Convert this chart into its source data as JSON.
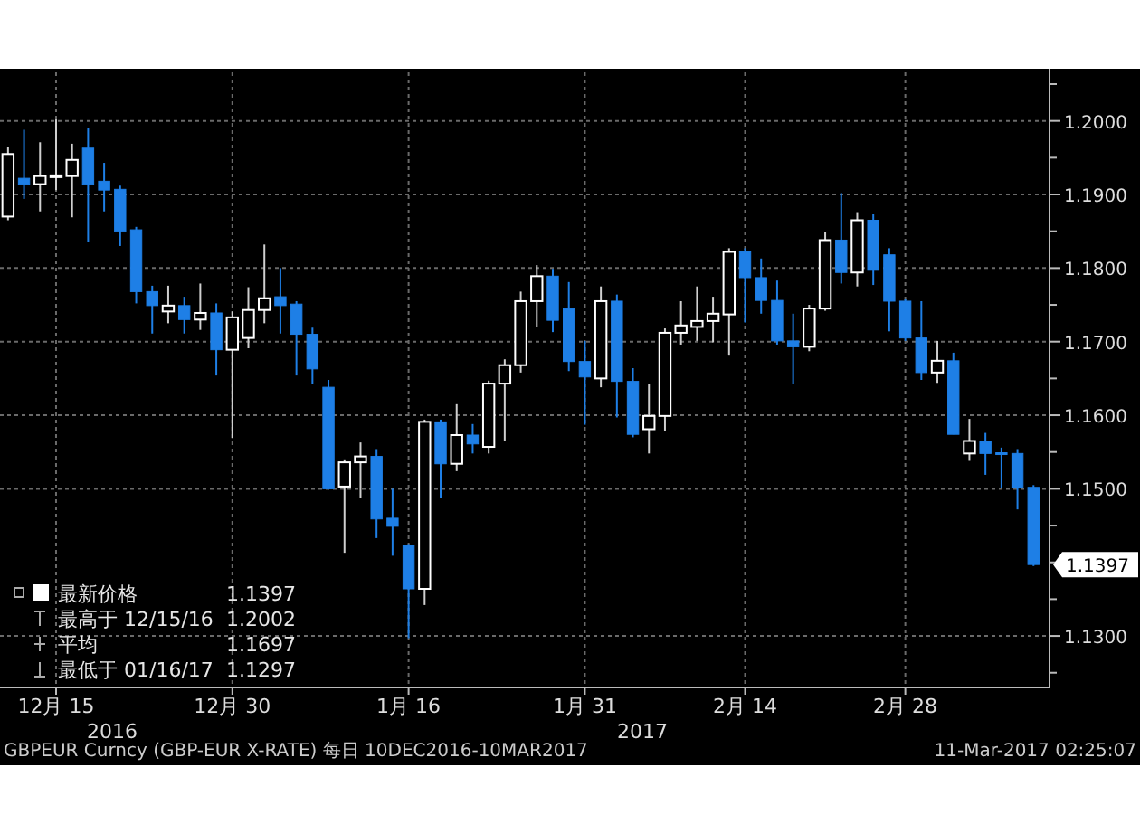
{
  "chart_data": {
    "type": "candlestick",
    "categories": [
      null,
      null,
      null,
      "12月 15",
      null,
      null,
      null,
      null,
      null,
      null,
      null,
      null,
      null,
      null,
      "12月 30",
      null,
      null,
      null,
      null,
      null,
      null,
      null,
      null,
      null,
      null,
      "1月 16",
      null,
      null,
      null,
      null,
      null,
      null,
      null,
      null,
      null,
      null,
      "1月 31",
      null,
      null,
      null,
      null,
      null,
      null,
      null,
      null,
      null,
      "2月 14",
      null,
      null,
      null,
      null,
      null,
      null,
      null,
      null,
      null,
      "2月 28",
      null,
      null,
      null,
      null,
      null,
      null,
      null,
      null
    ],
    "ohlc": [
      [
        1.187,
        1.1965,
        1.1865,
        1.1955
      ],
      [
        1.1922,
        1.1988,
        1.1894,
        1.1914
      ],
      [
        1.1914,
        1.1971,
        1.1877,
        1.1925
      ],
      [
        1.1924,
        1.2002,
        1.1906,
        1.1926
      ],
      [
        1.1925,
        1.1969,
        1.1869,
        1.1947
      ],
      [
        1.1963,
        1.199,
        1.1836,
        1.1914
      ],
      [
        1.1918,
        1.1943,
        1.1877,
        1.1906
      ],
      [
        1.1907,
        1.1912,
        1.183,
        1.185
      ],
      [
        1.1852,
        1.1856,
        1.1752,
        1.1768
      ],
      [
        1.1768,
        1.1776,
        1.1711,
        1.1749
      ],
      [
        1.1741,
        1.1776,
        1.1725,
        1.1749
      ],
      [
        1.1749,
        1.1761,
        1.1711,
        1.173
      ],
      [
        1.173,
        1.1779,
        1.1716,
        1.1739
      ],
      [
        1.1739,
        1.1752,
        1.1654,
        1.1689
      ],
      [
        1.1689,
        1.1741,
        1.1569,
        1.1733
      ],
      [
        1.1705,
        1.1774,
        1.1691,
        1.1743
      ],
      [
        1.1743,
        1.1832,
        1.1725,
        1.1759
      ],
      [
        1.1761,
        1.18,
        1.1711,
        1.1749
      ],
      [
        1.1751,
        1.1755,
        1.1654,
        1.171
      ],
      [
        1.171,
        1.1719,
        1.1642,
        1.1663
      ],
      [
        1.1638,
        1.1648,
        1.1499,
        1.15
      ],
      [
        1.1503,
        1.154,
        1.1413,
        1.1536
      ],
      [
        1.1536,
        1.1563,
        1.1487,
        1.1544
      ],
      [
        1.1544,
        1.1554,
        1.1433,
        1.1459
      ],
      [
        1.146,
        1.15,
        1.1409,
        1.1449
      ],
      [
        1.1423,
        1.1425,
        1.1297,
        1.1364
      ],
      [
        1.1364,
        1.1594,
        1.1342,
        1.1591
      ],
      [
        1.1591,
        1.1594,
        1.1487,
        1.1534
      ],
      [
        1.1534,
        1.1615,
        1.1524,
        1.1573
      ],
      [
        1.1573,
        1.1588,
        1.1548,
        1.1561
      ],
      [
        1.1557,
        1.1647,
        1.1548,
        1.1643
      ],
      [
        1.1643,
        1.1676,
        1.1565,
        1.1668
      ],
      [
        1.1668,
        1.1768,
        1.1658,
        1.1755
      ],
      [
        1.1755,
        1.1804,
        1.172,
        1.1789
      ],
      [
        1.1789,
        1.1799,
        1.1713,
        1.1729
      ],
      [
        1.1745,
        1.1781,
        1.166,
        1.1673
      ],
      [
        1.1673,
        1.1701,
        1.1587,
        1.1652
      ],
      [
        1.165,
        1.1775,
        1.1638,
        1.1755
      ],
      [
        1.1755,
        1.1764,
        1.1597,
        1.1646
      ],
      [
        1.1646,
        1.1664,
        1.157,
        1.1574
      ],
      [
        1.1581,
        1.1642,
        1.1548,
        1.1599
      ],
      [
        1.1599,
        1.1718,
        1.1579,
        1.1712
      ],
      [
        1.1712,
        1.1755,
        1.1696,
        1.1722
      ],
      [
        1.172,
        1.1775,
        1.1701,
        1.1728
      ],
      [
        1.1728,
        1.1761,
        1.1699,
        1.1738
      ],
      [
        1.1737,
        1.1827,
        1.1681,
        1.1822
      ],
      [
        1.1822,
        1.1827,
        1.1726,
        1.1787
      ],
      [
        1.1787,
        1.1813,
        1.1738,
        1.1756
      ],
      [
        1.1756,
        1.1783,
        1.1696,
        1.1701
      ],
      [
        1.1701,
        1.1738,
        1.1642,
        1.1693
      ],
      [
        1.1693,
        1.175,
        1.1687,
        1.1745
      ],
      [
        1.1745,
        1.1849,
        1.1742,
        1.1838
      ],
      [
        1.1838,
        1.1902,
        1.1779,
        1.1794
      ],
      [
        1.1794,
        1.1876,
        1.1775,
        1.1865
      ],
      [
        1.1865,
        1.1873,
        1.1777,
        1.1797
      ],
      [
        1.1818,
        1.1827,
        1.1714,
        1.1755
      ],
      [
        1.1755,
        1.1758,
        1.1701,
        1.1705
      ],
      [
        1.1705,
        1.1755,
        1.1648,
        1.1658
      ],
      [
        1.1658,
        1.1701,
        1.1644,
        1.1674
      ],
      [
        1.1674,
        1.1685,
        1.1574,
        1.1574
      ],
      [
        1.1548,
        1.1595,
        1.1538,
        1.1565
      ],
      [
        1.1565,
        1.1576,
        1.1519,
        1.1548
      ],
      [
        1.1549,
        1.1556,
        1.1501,
        1.1548
      ],
      [
        1.1548,
        1.1554,
        1.1472,
        1.1501
      ],
      [
        1.1502,
        1.1505,
        1.1395,
        1.1397
      ]
    ],
    "colors": [
      "#ffffff",
      "#1e7fe6",
      "#ffffff",
      "#ffffff",
      "#ffffff",
      "#1e7fe6",
      "#1e7fe6",
      "#1e7fe6",
      "#1e7fe6",
      "#1e7fe6",
      "#ffffff",
      "#1e7fe6",
      "#ffffff",
      "#1e7fe6",
      "#ffffff",
      "#ffffff",
      "#ffffff",
      "#1e7fe6",
      "#1e7fe6",
      "#1e7fe6",
      "#1e7fe6",
      "#ffffff",
      "#ffffff",
      "#1e7fe6",
      "#1e7fe6",
      "#1e7fe6",
      "#ffffff",
      "#1e7fe6",
      "#ffffff",
      "#1e7fe6",
      "#ffffff",
      "#ffffff",
      "#ffffff",
      "#ffffff",
      "#1e7fe6",
      "#1e7fe6",
      "#1e7fe6",
      "#ffffff",
      "#1e7fe6",
      "#1e7fe6",
      "#ffffff",
      "#ffffff",
      "#ffffff",
      "#ffffff",
      "#ffffff",
      "#ffffff",
      "#1e7fe6",
      "#1e7fe6",
      "#1e7fe6",
      "#1e7fe6",
      "#ffffff",
      "#ffffff",
      "#1e7fe6",
      "#ffffff",
      "#1e7fe6",
      "#1e7fe6",
      "#1e7fe6",
      "#1e7fe6",
      "#ffffff",
      "#1e7fe6",
      "#ffffff",
      "#1e7fe6",
      "#1e7fe6",
      "#1e7fe6",
      "#1e7fe6"
    ],
    "ylim": [
      1.123,
      1.2066
    ],
    "yticks": [
      {
        "value": 1.125,
        "label": null
      },
      {
        "value": 1.13,
        "label": "1.1300"
      },
      {
        "value": 1.135,
        "label": null
      },
      {
        "value": 1.14,
        "label": null
      },
      {
        "value": 1.145,
        "label": null
      },
      {
        "value": 1.15,
        "label": "1.1500"
      },
      {
        "value": 1.155,
        "label": null
      },
      {
        "value": 1.16,
        "label": "1.1600"
      },
      {
        "value": 1.165,
        "label": null
      },
      {
        "value": 1.17,
        "label": "1.1700"
      },
      {
        "value": 1.175,
        "label": null
      },
      {
        "value": 1.18,
        "label": "1.1800"
      },
      {
        "value": 1.185,
        "label": null
      },
      {
        "value": 1.19,
        "label": "1.1900"
      },
      {
        "value": 1.195,
        "label": null
      },
      {
        "value": 1.2,
        "label": "1.2000"
      },
      {
        "value": 1.205,
        "label": null
      }
    ],
    "grid": true,
    "annotations": [
      "最新价格",
      "1.1397",
      "最高于 12/15/16",
      "1.2002",
      "平均",
      "1.1697",
      "最低于 01/16/17",
      "1.1297",
      "2016",
      "2017",
      "GBPEUR Curncy (GBP-EUR X-RATE)  每日 10DEC2016-10MAR2017",
      "11-Mar-2017 02:25:07",
      "1.1397"
    ]
  }
}
